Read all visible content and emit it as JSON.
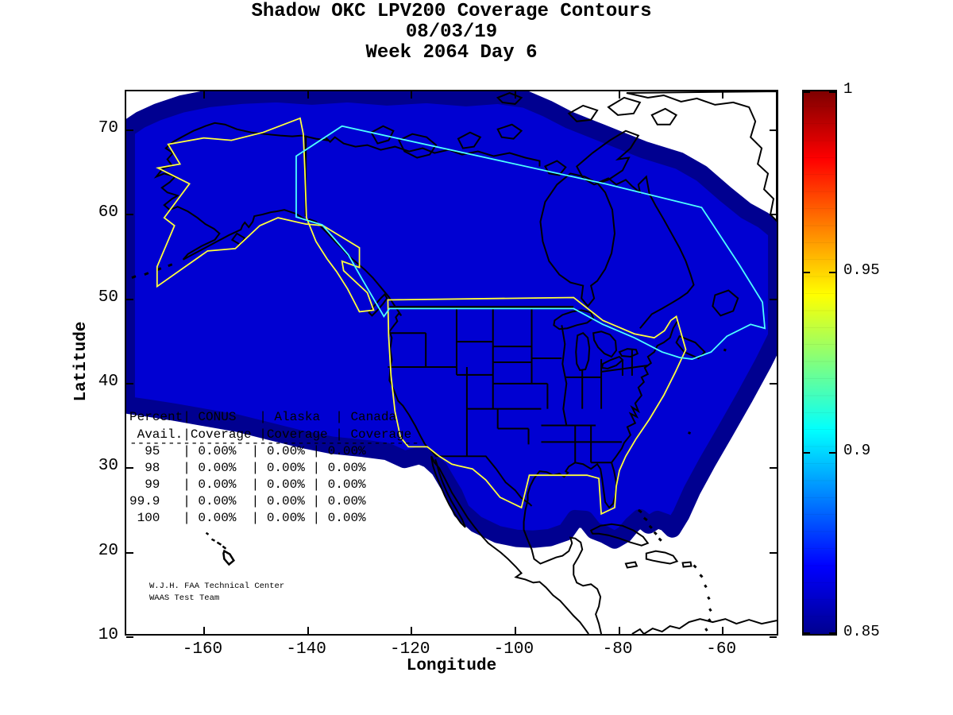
{
  "title": {
    "line1": "Shadow OKC LPV200 Coverage Contours",
    "line2": "08/03/19",
    "line3": "Week 2064 Day 6"
  },
  "axes": {
    "xlabel": "Longitude",
    "ylabel": "Latitude",
    "x_ticks": [
      -160,
      -140,
      -120,
      -100,
      -80,
      -60
    ],
    "y_ticks": [
      70,
      60,
      50,
      40,
      30,
      20,
      10
    ],
    "x_range": [
      -175,
      -49
    ],
    "y_range": [
      10,
      74.6
    ]
  },
  "colorbar": {
    "min": 0.85,
    "max": 1,
    "tick_values": [
      1,
      0.95,
      0.9,
      0.85
    ],
    "tick_labels": [
      "1",
      "0.95",
      "0.9",
      "0.85"
    ],
    "colormap": "jet"
  },
  "table": {
    "lines": [
      "Percent| CONUS   | Alaska  | Canada",
      " Avail.|Coverage |Coverage | Coverage",
      "--------------------------------------",
      "  95   | 0.00%  | 0.00% | 0.00%",
      "  98   | 0.00%  | 0.00% | 0.00%",
      "  99   | 0.00%  | 0.00% | 0.00%",
      "99.9   | 0.00%  | 0.00% | 0.00%",
      " 100   | 0.00%  | 0.00% | 0.00%"
    ],
    "columns": [
      "Percent Avail.",
      "CONUS Coverage",
      "Alaska Coverage",
      "Canada Coverage"
    ],
    "rows": [
      {
        "avail": "95",
        "conus": "0.00%",
        "alaska": "0.00%",
        "canada": "0.00%"
      },
      {
        "avail": "98",
        "conus": "0.00%",
        "alaska": "0.00%",
        "canada": "0.00%"
      },
      {
        "avail": "99",
        "conus": "0.00%",
        "alaska": "0.00%",
        "canada": "0.00%"
      },
      {
        "avail": "99.9",
        "conus": "0.00%",
        "alaska": "0.00%",
        "canada": "0.00%"
      },
      {
        "avail": "100",
        "conus": "0.00%",
        "alaska": "0.00%",
        "canada": "0.00%"
      }
    ]
  },
  "attribution": {
    "line1": "W.J.H. FAA Technical Center",
    "line2": "WAAS Test Team"
  },
  "colors": {
    "coverage_fill": "#0000D2",
    "coverage_rim": "#000090",
    "boundary_yellow": "#FFFF3C",
    "boundary_cyan": "#4DFFFF",
    "coast_black": "#000000",
    "land_white": "#FFFFFF",
    "colorbar_stops": [
      "#00008F",
      "#0000FF",
      "#00FFFF",
      "#FFFF00",
      "#FF0000",
      "#7F0000"
    ]
  },
  "chart_data": {
    "type": "heatmap",
    "subtype": "geographic-coverage-contour-map",
    "title": "Shadow OKC LPV200 Coverage Contours",
    "subtitle": [
      "08/03/19",
      "Week 2064 Day 6"
    ],
    "xlabel": "Longitude",
    "ylabel": "Latitude",
    "xlim": [
      -175,
      -49
    ],
    "ylim": [
      10,
      75
    ],
    "x_ticks": [
      -160,
      -140,
      -120,
      -100,
      -80,
      -60
    ],
    "y_ticks": [
      10,
      20,
      30,
      40,
      50,
      60,
      70
    ],
    "colorbar": {
      "range": [
        0.85,
        1
      ],
      "ticks": [
        0.85,
        0.9,
        0.95,
        1
      ],
      "colormap": "jet",
      "legend_position": "right"
    },
    "map_content": "Single large LPV200 availability region at the lowest contour levels (~0.85-0.87, dark blue) covering Alaska, Canada and CONUS, with white (no coverage) over Mexico, Central America, Caribbean and Greenland; CONUS and Alaska service boundaries outlined in yellow, Canada boundary in cyan; coastlines and state borders in black",
    "availability_table": {
      "columns": [
        "Percent Avail.",
        "CONUS Coverage",
        "Alaska Coverage",
        "Canada Coverage"
      ],
      "rows": [
        [
          "95",
          "0.00%",
          "0.00%",
          "0.00%"
        ],
        [
          "98",
          "0.00%",
          "0.00%",
          "0.00%"
        ],
        [
          "99",
          "0.00%",
          "0.00%",
          "0.00%"
        ],
        [
          "99.9",
          "0.00%",
          "0.00%",
          "0.00%"
        ],
        [
          "100",
          "0.00%",
          "0.00%",
          "0.00%"
        ]
      ]
    }
  }
}
